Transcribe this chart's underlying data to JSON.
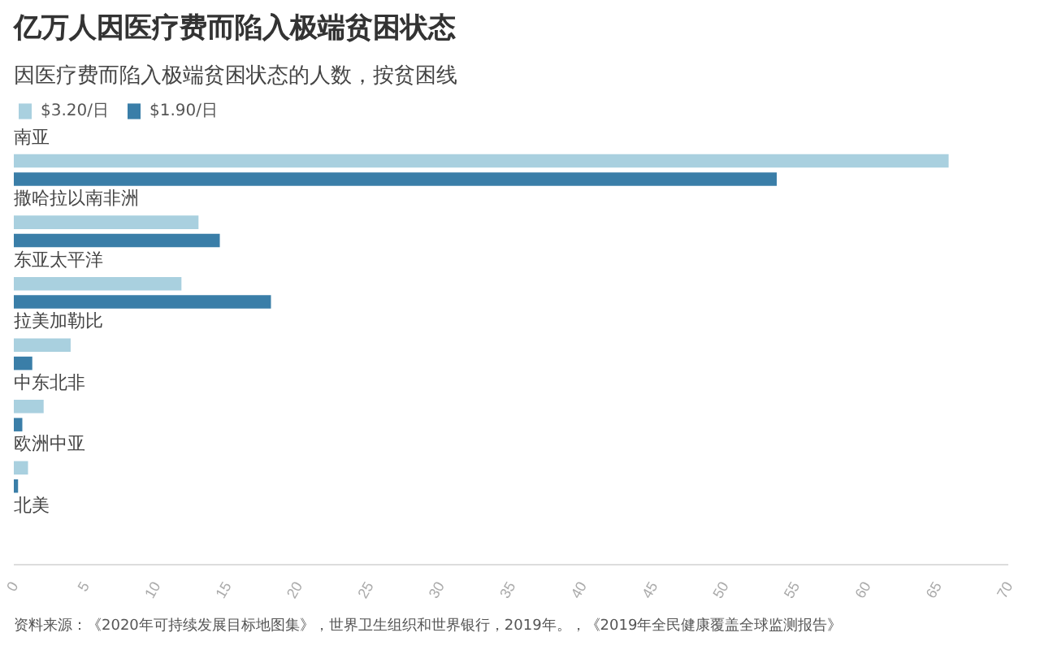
{
  "chart_data": {
    "type": "bar",
    "orientation": "horizontal",
    "title": "亿万人因医疗费而陷入极端贫困状态",
    "subtitle": "因医疗费而陷入极端贫困状态的人数，按贫困线",
    "categories": [
      "南亚",
      "撒哈拉以南非洲",
      "东亚太平洋",
      "拉美加勒比",
      "中东北非",
      "欧洲中亚",
      "北美"
    ],
    "series": [
      {
        "name": "$3.20/日",
        "color": "#a9d0df",
        "values": [
          65.8,
          13.0,
          11.8,
          4.0,
          2.1,
          1.0,
          0
        ]
      },
      {
        "name": "$1.90/日",
        "color": "#3a7ea8",
        "values": [
          53.7,
          14.5,
          18.1,
          1.3,
          0.6,
          0.3,
          0
        ]
      }
    ],
    "xlim": [
      0,
      70
    ],
    "xticks": [
      0,
      5,
      10,
      15,
      20,
      25,
      30,
      35,
      40,
      45,
      50,
      55,
      60,
      65,
      70
    ],
    "grid": false,
    "legend": "top left",
    "annotations": [
      "资料来源：《2020年可持续发展目标地图集》，世界卫生组织和世界银行，2019年。，《2019年全民健康覆盖全球监测报告》"
    ]
  }
}
